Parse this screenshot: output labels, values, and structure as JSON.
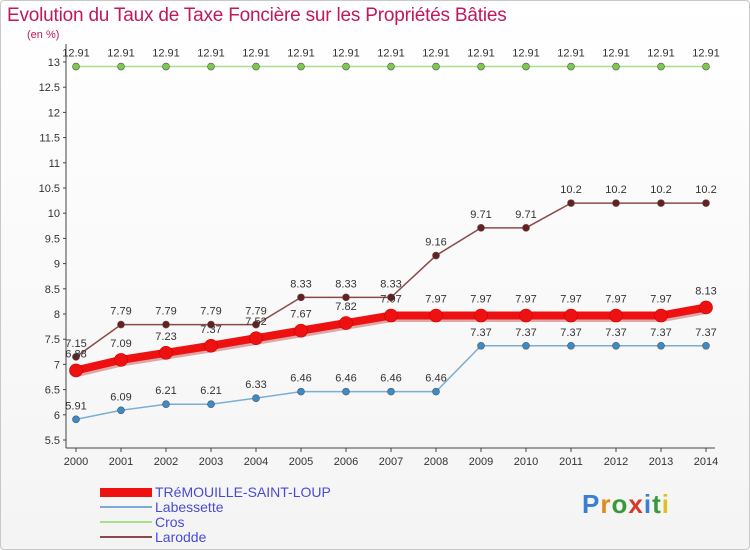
{
  "title": "Evolution du Taux de Taxe Foncière sur les Propriétés Bâties",
  "unit_label": "(en %)",
  "logo": {
    "text": "Proxiti",
    "colors": [
      "#3a7fd0",
      "#e08a1e",
      "#3a9a3a",
      "#d63a2a",
      "#3a7fd0",
      "#3a9a3a",
      "#e0c020"
    ]
  },
  "chart_data": {
    "type": "line",
    "title": "Evolution du Taux de Taxe Foncière sur les Propriétés Bâties",
    "ylabel": "(en %)",
    "xlabel": "",
    "categories": [
      "2000",
      "2001",
      "2002",
      "2003",
      "2004",
      "2005",
      "2006",
      "2007",
      "2008",
      "2009",
      "2010",
      "2011",
      "2012",
      "2013",
      "2014"
    ],
    "ylim": [
      5.5,
      13
    ],
    "yticks": [
      5.5,
      6,
      6.5,
      7,
      7.5,
      8,
      8.5,
      9,
      9.5,
      10,
      10.5,
      11,
      11.5,
      12,
      12.5,
      13
    ],
    "grid": false,
    "legend": "bottom-left",
    "series": [
      {
        "name": "TRéMOUILLE-SAINT-LOUP",
        "color": "#ee1111",
        "marker_color": "#ee1111",
        "emphasis": true,
        "values": [
          6.88,
          7.09,
          7.23,
          7.37,
          7.52,
          7.67,
          7.82,
          7.97,
          7.97,
          7.97,
          7.97,
          7.97,
          7.97,
          7.97,
          8.13
        ],
        "labels": [
          "6.88",
          "7.09",
          "7.23",
          "7.37",
          "7.52",
          "7.67",
          "7.82",
          "7.97",
          "7.97",
          "7.97",
          "7.97",
          "7.97",
          "7.97",
          "7.97",
          "8.13"
        ]
      },
      {
        "name": "Labessette",
        "color": "#7aaed6",
        "marker_color": "#3a8cc8",
        "emphasis": false,
        "values": [
          5.91,
          6.09,
          6.21,
          6.21,
          6.33,
          6.46,
          6.46,
          6.46,
          6.46,
          7.37,
          7.37,
          7.37,
          7.37,
          7.37,
          7.37
        ],
        "labels": [
          "5.91",
          "6.09",
          "6.21",
          "6.21",
          "6.33",
          "6.46",
          "6.46",
          "6.46",
          "6.46",
          "7.37",
          "7.37",
          "7.37",
          "7.37",
          "7.37",
          "7.37"
        ]
      },
      {
        "name": "Cros",
        "color": "#a6e08a",
        "marker_color": "#7cc94e",
        "emphasis": false,
        "values": [
          12.91,
          12.91,
          12.91,
          12.91,
          12.91,
          12.91,
          12.91,
          12.91,
          12.91,
          12.91,
          12.91,
          12.91,
          12.91,
          12.91,
          12.91
        ],
        "labels": [
          "12.91",
          "12.91",
          "12.91",
          "12.91",
          "12.91",
          "12.91",
          "12.91",
          "12.91",
          "12.91",
          "12.91",
          "12.91",
          "12.91",
          "12.91",
          "12.91",
          "12.91"
        ]
      },
      {
        "name": "Larodde",
        "color": "#8a4a4a",
        "marker_color": "#6a1e1e",
        "emphasis": false,
        "values": [
          7.15,
          7.79,
          7.79,
          7.79,
          7.79,
          8.33,
          8.33,
          8.33,
          9.16,
          9.71,
          9.71,
          10.2,
          10.2,
          10.2,
          10.2
        ],
        "labels": [
          "7.15",
          "7.79",
          "7.79",
          "7.79",
          "7.79",
          "8.33",
          "8.33",
          "8.33",
          "9.16",
          "9.71",
          "9.71",
          "10.2",
          "10.2",
          "10.2",
          "10.2"
        ]
      }
    ]
  }
}
